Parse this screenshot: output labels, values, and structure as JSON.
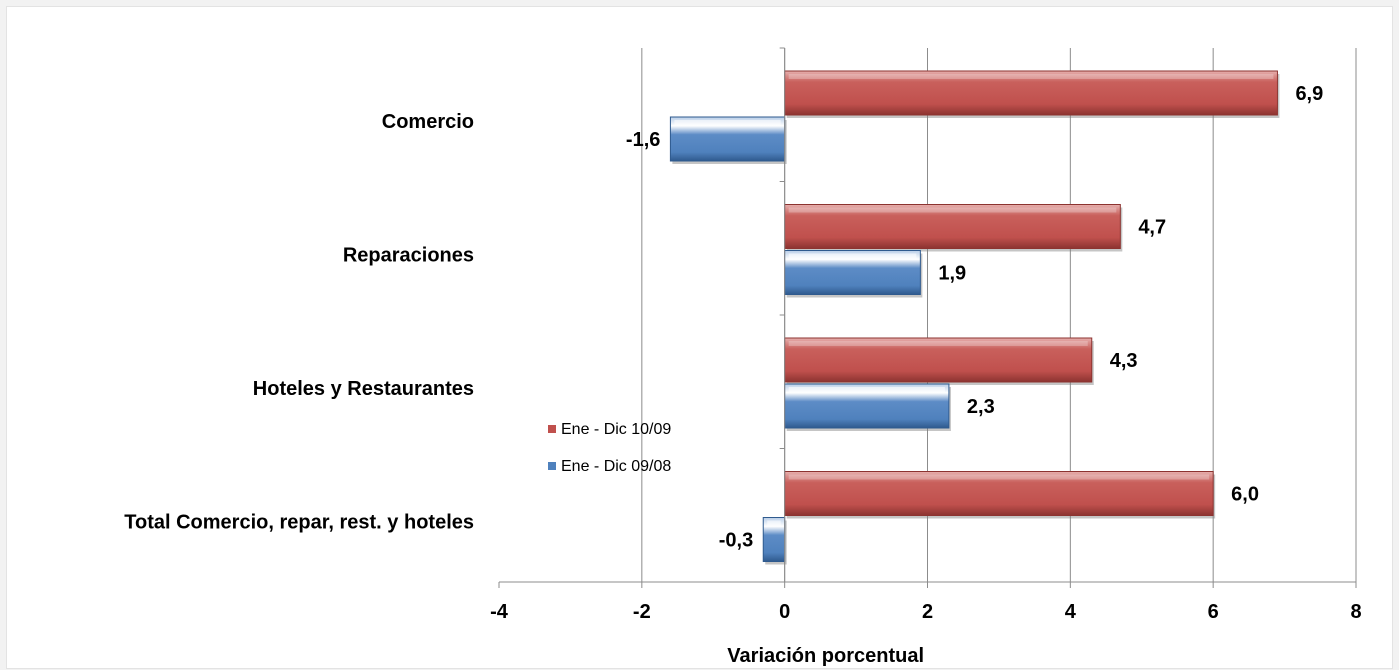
{
  "chart_data": {
    "type": "bar",
    "orientation": "horizontal",
    "categories": [
      "Comercio",
      "Reparaciones",
      "Hoteles y Restaurantes",
      "Total Comercio, repar, rest. y hoteles"
    ],
    "series": [
      {
        "name": "Ene - Dic 10/09",
        "color": "#c0504d",
        "values": [
          6.9,
          4.7,
          4.3,
          6.0
        ],
        "labels": [
          "6,9",
          "4,7",
          "4,3",
          "6,0"
        ]
      },
      {
        "name": "Ene - Dic 09/08",
        "color": "#4f81bd",
        "values": [
          -1.6,
          1.9,
          2.3,
          -0.3
        ],
        "labels": [
          "-1,6",
          "1,9",
          "2,3",
          "-0,3"
        ]
      }
    ],
    "xlabel": "Variación porcentual",
    "ylabel": "",
    "xlim": [
      -4,
      8
    ],
    "xticks": [
      -4,
      -2,
      0,
      2,
      4,
      6,
      8
    ],
    "xtick_labels": [
      "-4",
      "-2",
      "0",
      "2",
      "4",
      "6",
      "8"
    ],
    "grid": "vertical",
    "legend": "center"
  }
}
